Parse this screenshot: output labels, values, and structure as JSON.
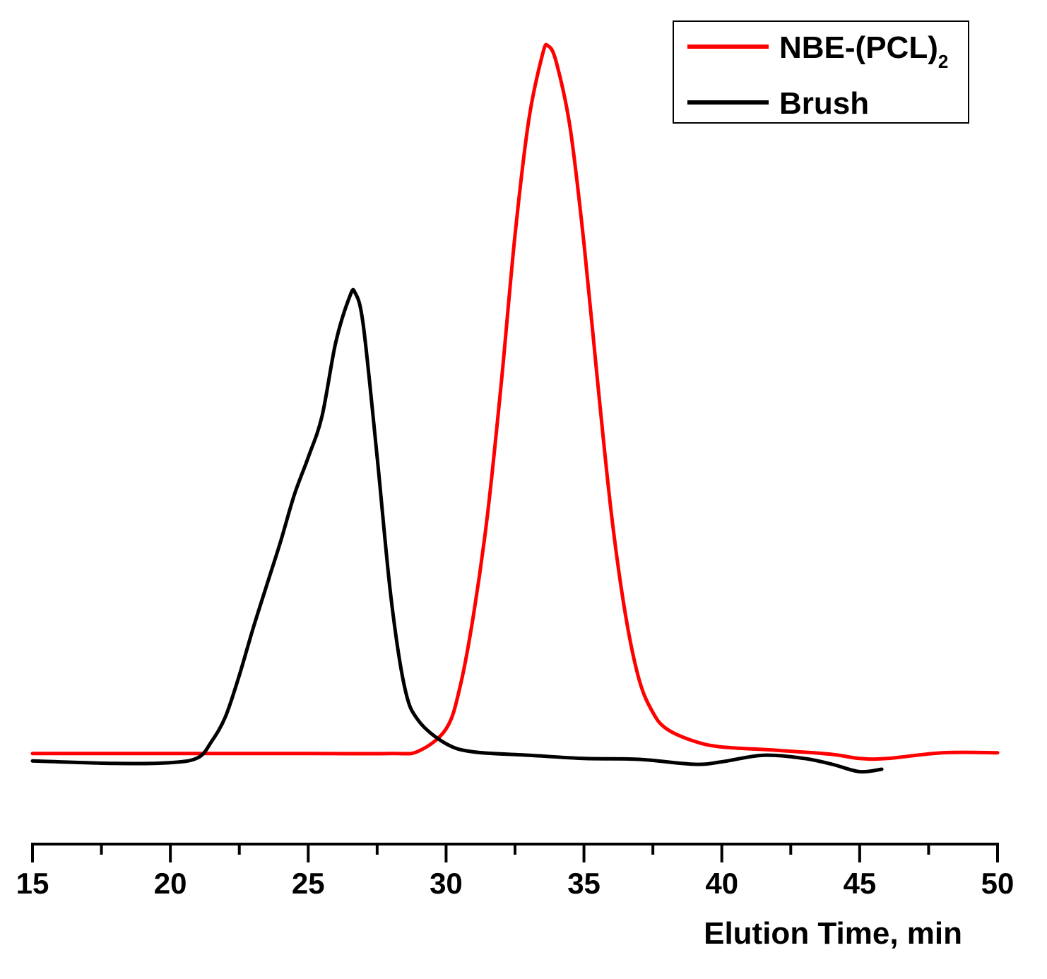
{
  "chart_data": {
    "type": "line",
    "title": "",
    "xlabel": "Elution Time, min",
    "ylabel": "",
    "xlim": [
      15,
      50
    ],
    "ylim": [
      0,
      1
    ],
    "x_ticks": [
      15,
      20,
      25,
      30,
      35,
      40,
      45,
      50
    ],
    "x_tick_labels": [
      "15",
      "20",
      "25",
      "30",
      "35",
      "40",
      "45",
      "50"
    ],
    "y_axis_shown": false,
    "grid": false,
    "legend_position": "top-right",
    "series": [
      {
        "name": "NBE-(PCL)2",
        "legend_main": "NBE-(PCL)",
        "legend_subscript": "2",
        "color": "#ff0000",
        "x": [
          15,
          20,
          25,
          28,
          29,
          30,
          30.5,
          31,
          31.5,
          32,
          32.5,
          33,
          33.5,
          33.7,
          34,
          34.5,
          35,
          35.5,
          36,
          36.5,
          37,
          37.5,
          38,
          39,
          40,
          42,
          44,
          45,
          46,
          48,
          50
        ],
        "y": [
          0.11,
          0.11,
          0.11,
          0.11,
          0.113,
          0.14,
          0.19,
          0.28,
          0.4,
          0.56,
          0.74,
          0.88,
          0.96,
          0.97,
          0.95,
          0.87,
          0.73,
          0.56,
          0.4,
          0.28,
          0.2,
          0.16,
          0.14,
          0.125,
          0.118,
          0.114,
          0.109,
          0.104,
          0.104,
          0.111,
          0.111
        ]
      },
      {
        "name": "Brush",
        "color": "#000000",
        "x": [
          15,
          18,
          20,
          21,
          21.5,
          22,
          22.5,
          23,
          23.5,
          24,
          24.5,
          25,
          25.5,
          26,
          26.5,
          26.7,
          27,
          27.5,
          28,
          28.5,
          29,
          30,
          31,
          33,
          35,
          37,
          39,
          40,
          41.5,
          43,
          44,
          45,
          45.8
        ],
        "y": [
          0.101,
          0.098,
          0.099,
          0.105,
          0.125,
          0.155,
          0.205,
          0.262,
          0.315,
          0.368,
          0.425,
          0.47,
          0.52,
          0.61,
          0.665,
          0.67,
          0.63,
          0.47,
          0.3,
          0.19,
          0.15,
          0.122,
          0.112,
          0.108,
          0.104,
          0.103,
          0.097,
          0.1,
          0.108,
          0.104,
          0.097,
          0.088,
          0.091
        ]
      }
    ]
  }
}
